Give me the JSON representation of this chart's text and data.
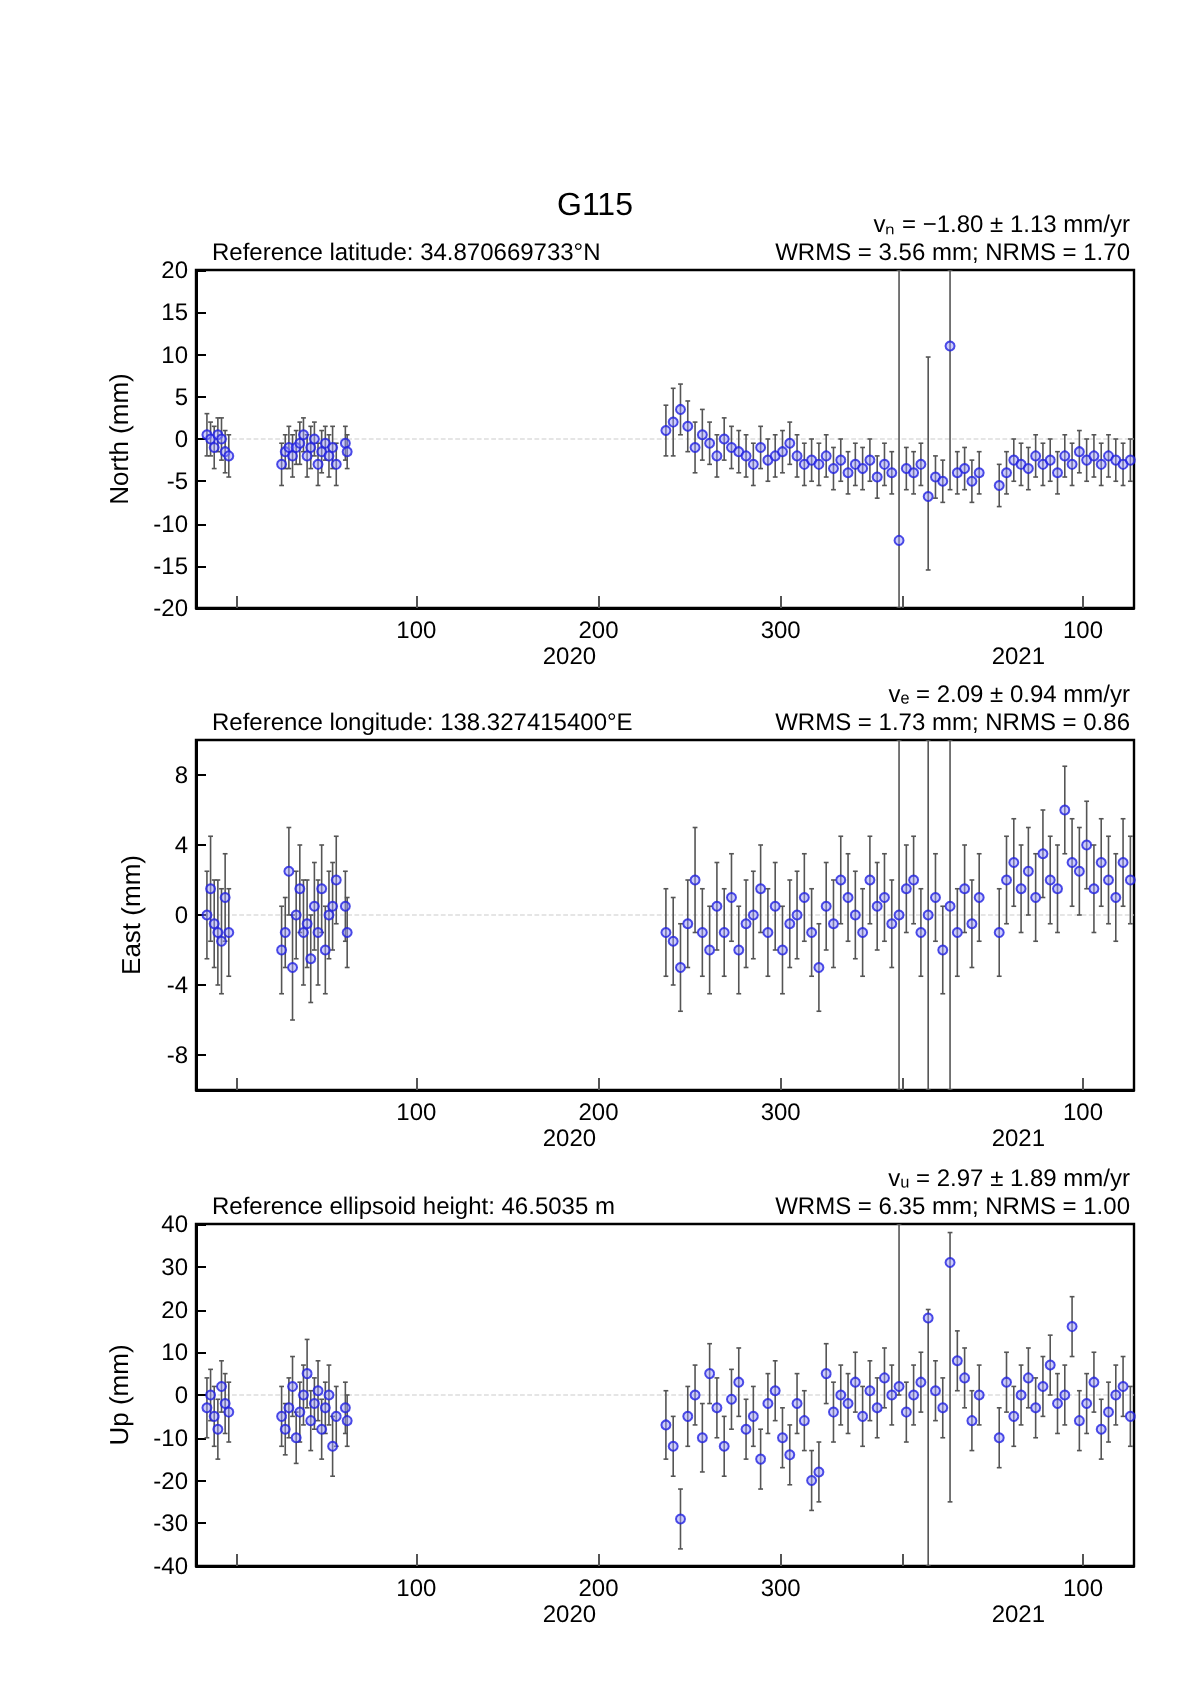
{
  "chart_data": [
    {
      "type": "scatter",
      "title": "G115",
      "subtitle": "Reference latitude: 34.870669733°N",
      "ylabel": "North (mm)",
      "annotations": [
        "vₙ = −1.80 ± 1.13 mm/yr",
        "WRMS = 3.56 mm; NRMS = 1.70",
        "2020",
        "2021"
      ],
      "color": "#2020e0",
      "marker": "circle",
      "xlim": [
        "2019-12-10",
        "2021-05-08"
      ],
      "xticks": [
        {
          "value": "2020-01-01",
          "label": null
        },
        {
          "value": "2020-04-09",
          "label": "100"
        },
        {
          "value": "2020-07-18",
          "label": "200"
        },
        {
          "value": "2020-10-26",
          "label": "300"
        },
        {
          "value": "2021-01-01",
          "label": null
        },
        {
          "value": "2021-04-10",
          "label": "100"
        }
      ],
      "ylim": [
        -20,
        20
      ],
      "yticks": [
        -20,
        -15,
        -10,
        -5,
        0,
        5,
        10,
        15,
        20
      ],
      "ref_lines": [
        {
          "axis": "y",
          "value": 0,
          "color": "#cccccc",
          "line_style": "dashed"
        }
      ],
      "x": [
        "2019-12-16",
        "2019-12-18",
        "2019-12-20",
        "2019-12-22",
        "2019-12-24",
        "2019-12-26",
        "2019-12-28",
        "2020-01-26",
        "2020-01-28",
        "2020-01-30",
        "2020-02-01",
        "2020-02-03",
        "2020-02-05",
        "2020-02-07",
        "2020-02-09",
        "2020-02-11",
        "2020-02-13",
        "2020-02-15",
        "2020-02-17",
        "2020-02-19",
        "2020-02-21",
        "2020-02-23",
        "2020-02-25",
        "2020-03-01",
        "2020-03-02",
        "2020-08-24",
        "2020-08-28",
        "2020-09-01",
        "2020-09-05",
        "2020-09-09",
        "2020-09-13",
        "2020-09-17",
        "2020-09-21",
        "2020-09-25",
        "2020-09-29",
        "2020-10-03",
        "2020-10-07",
        "2020-10-11",
        "2020-10-15",
        "2020-10-19",
        "2020-10-23",
        "2020-10-27",
        "2020-10-31",
        "2020-11-04",
        "2020-11-08",
        "2020-11-12",
        "2020-11-16",
        "2020-11-20",
        "2020-11-24",
        "2020-11-28",
        "2020-12-02",
        "2020-12-06",
        "2020-12-10",
        "2020-12-14",
        "2020-12-18",
        "2020-12-22",
        "2020-12-26",
        "2020-12-30",
        "2021-01-03",
        "2021-01-07",
        "2021-01-11",
        "2021-01-15",
        "2021-01-19",
        "2021-01-23",
        "2021-01-27",
        "2021-01-31",
        "2021-02-04",
        "2021-02-08",
        "2021-02-12",
        "2021-02-23",
        "2021-02-27",
        "2021-03-03",
        "2021-03-07",
        "2021-03-11",
        "2021-03-15",
        "2021-03-19",
        "2021-03-23",
        "2021-03-27",
        "2021-03-31",
        "2021-04-04",
        "2021-04-08",
        "2021-04-12",
        "2021-04-16",
        "2021-04-20",
        "2021-04-24",
        "2021-04-28",
        "2021-05-02",
        "2021-05-06"
      ],
      "values": [
        0.5,
        0,
        -1,
        0.5,
        0,
        -1.5,
        -2,
        -3,
        -1.5,
        -1,
        -2,
        -1,
        -0.5,
        0.5,
        -2,
        -1,
        0,
        -3,
        -1.5,
        -0.5,
        -2,
        -1,
        -3,
        -0.5,
        -1.5,
        1,
        2,
        3.5,
        1.5,
        -1,
        0.5,
        -0.5,
        -2,
        0,
        -1,
        -1.5,
        -2,
        -3,
        -1,
        -2.5,
        -2,
        -1.5,
        -0.5,
        -2,
        -3,
        -2.5,
        -3,
        -2,
        -3.5,
        -2.5,
        -4,
        -3,
        -3.5,
        -2.5,
        -4.5,
        -3,
        -4,
        -12,
        -3.5,
        -4,
        -3,
        -6.8,
        -4.5,
        -5,
        11,
        -4,
        -3.5,
        -5,
        -4,
        -5.5,
        -4,
        -2.5,
        -3,
        -3.5,
        -2,
        -3,
        -2.5,
        -4,
        -2,
        -3,
        -1.5,
        -2.5,
        -2,
        -3,
        -2,
        -2.5,
        -3,
        -2.5
      ],
      "errors": [
        2.5,
        2,
        2.5,
        2,
        2.5,
        2.5,
        2.5,
        2.5,
        2,
        2.5,
        2.5,
        2,
        2.5,
        2,
        2.5,
        2.5,
        2,
        2.5,
        2.5,
        2,
        2.5,
        2.5,
        2.5,
        2,
        2,
        3,
        4,
        3,
        3,
        3,
        3,
        2.5,
        2.5,
        2.5,
        2.5,
        2.5,
        2.5,
        2.5,
        2.5,
        2.5,
        2.5,
        2.5,
        2.5,
        2.5,
        2.5,
        2.5,
        2.5,
        2.5,
        2.5,
        2.5,
        2.5,
        2.5,
        2.5,
        2.5,
        2.5,
        2.5,
        2.5,
        [
          -20,
          20
        ],
        2.5,
        2.5,
        2.5,
        [
          -15.5,
          9.7
        ],
        2.5,
        2.5,
        [
          -6,
          20
        ],
        2.5,
        2.5,
        2.5,
        2.5,
        2.5,
        2.5,
        2.5,
        2.5,
        2.5,
        2.5,
        2.5,
        2.5,
        2.5,
        2.5,
        2.5,
        2.5,
        2.5,
        2.5,
        2.5,
        2.5,
        2.5,
        2.5,
        2.5
      ]
    },
    {
      "type": "scatter",
      "subtitle": "Reference longitude: 138.327415400°E",
      "ylabel": "East (mm)",
      "annotations": [
        "vₑ = 2.09 ± 0.94 mm/yr",
        "WRMS = 1.73 mm; NRMS = 0.86",
        "2020",
        "2021"
      ],
      "color": "#2020e0",
      "marker": "circle",
      "xlim": [
        "2019-12-10",
        "2021-05-08"
      ],
      "xticks": [
        {
          "value": "2020-01-01",
          "label": null
        },
        {
          "value": "2020-04-09",
          "label": "100"
        },
        {
          "value": "2020-07-18",
          "label": "200"
        },
        {
          "value": "2020-10-26",
          "label": "300"
        },
        {
          "value": "2021-01-01",
          "label": null
        },
        {
          "value": "2021-04-10",
          "label": "100"
        }
      ],
      "ylim": [
        -10,
        10
      ],
      "yticks": [
        -8,
        -4,
        0,
        4,
        8
      ],
      "ref_lines": [
        {
          "axis": "y",
          "value": 0,
          "color": "#cccccc",
          "line_style": "dashed"
        }
      ],
      "x": [
        "2019-12-16",
        "2019-12-18",
        "2019-12-20",
        "2019-12-22",
        "2019-12-24",
        "2019-12-26",
        "2019-12-28",
        "2020-01-26",
        "2020-01-28",
        "2020-01-30",
        "2020-02-01",
        "2020-02-03",
        "2020-02-05",
        "2020-02-07",
        "2020-02-09",
        "2020-02-11",
        "2020-02-13",
        "2020-02-15",
        "2020-02-17",
        "2020-02-19",
        "2020-02-21",
        "2020-02-23",
        "2020-02-25",
        "2020-03-01",
        "2020-03-02",
        "2020-08-24",
        "2020-08-28",
        "2020-09-01",
        "2020-09-05",
        "2020-09-09",
        "2020-09-13",
        "2020-09-17",
        "2020-09-21",
        "2020-09-25",
        "2020-09-29",
        "2020-10-03",
        "2020-10-07",
        "2020-10-11",
        "2020-10-15",
        "2020-10-19",
        "2020-10-23",
        "2020-10-27",
        "2020-10-31",
        "2020-11-04",
        "2020-11-08",
        "2020-11-12",
        "2020-11-16",
        "2020-11-20",
        "2020-11-24",
        "2020-11-28",
        "2020-12-02",
        "2020-12-06",
        "2020-12-10",
        "2020-12-14",
        "2020-12-18",
        "2020-12-22",
        "2020-12-26",
        "2020-12-30",
        "2021-01-03",
        "2021-01-07",
        "2021-01-11",
        "2021-01-15",
        "2021-01-19",
        "2021-01-23",
        "2021-01-27",
        "2021-01-31",
        "2021-02-04",
        "2021-02-08",
        "2021-02-12",
        "2021-02-23",
        "2021-02-27",
        "2021-03-03",
        "2021-03-07",
        "2021-03-11",
        "2021-03-15",
        "2021-03-19",
        "2021-03-23",
        "2021-03-27",
        "2021-03-31",
        "2021-04-04",
        "2021-04-08",
        "2021-04-12",
        "2021-04-16",
        "2021-04-20",
        "2021-04-24",
        "2021-04-28",
        "2021-05-02",
        "2021-05-06"
      ],
      "values": [
        0,
        1.5,
        -0.5,
        -1,
        -1.5,
        1,
        -1,
        -2,
        -1,
        2.5,
        -3,
        0,
        1.5,
        -1,
        -0.5,
        -2.5,
        0.5,
        -1,
        1.5,
        -2,
        0,
        0.5,
        2,
        0.5,
        -1,
        -1,
        -1.5,
        -3,
        -0.5,
        2,
        -1,
        -2,
        0.5,
        -1,
        1,
        -2,
        -0.5,
        0,
        1.5,
        -1,
        0.5,
        -2,
        -0.5,
        0,
        1,
        -1,
        -3,
        0.5,
        -0.5,
        2,
        1,
        0,
        -1,
        2,
        0.5,
        1,
        -0.5,
        0,
        1.5,
        2,
        -1,
        0,
        1,
        -2,
        0.5,
        -1,
        1.5,
        -0.5,
        1,
        -1,
        2,
        3,
        1.5,
        2.5,
        1,
        3.5,
        2,
        1.5,
        6,
        3,
        2.5,
        4,
        1.5,
        3,
        2,
        1,
        3,
        2
      ],
      "errors": [
        2.5,
        3,
        2.5,
        3,
        3,
        2.5,
        2.5,
        2.5,
        2,
        2.5,
        3,
        2.5,
        2.5,
        3,
        2.5,
        2.5,
        2.5,
        3,
        2.5,
        2.5,
        2.5,
        2.5,
        2.5,
        2,
        2,
        2.5,
        2.5,
        2.5,
        2.5,
        3,
        2.5,
        2.5,
        2.5,
        2.5,
        2.5,
        2.5,
        2.5,
        2.5,
        2.5,
        2.5,
        2.5,
        2.5,
        2.5,
        2.5,
        2.5,
        2.5,
        2.5,
        2.5,
        2.5,
        2.5,
        2.5,
        2.5,
        2.5,
        2.5,
        2.5,
        2.5,
        2.5,
        [
          -10,
          10
        ],
        2.5,
        2.5,
        2.5,
        [
          -10,
          10
        ],
        2.5,
        2.5,
        [
          -10,
          10
        ],
        2.5,
        2.5,
        2.5,
        2.5,
        2.5,
        2.5,
        2.5,
        2.5,
        2.5,
        2.5,
        2.5,
        2.5,
        2.5,
        2.5,
        2.5,
        2.5,
        2.5,
        2.5,
        2.5,
        2.5,
        2.5,
        2.5,
        2.5
      ]
    },
    {
      "type": "scatter",
      "subtitle": "Reference ellipsoid height: 46.5035 m",
      "ylabel": "Up (mm)",
      "annotations": [
        "vᵤ = 2.97 ± 1.89 mm/yr",
        "WRMS = 6.35 mm; NRMS = 1.00",
        "2020",
        "2021"
      ],
      "color": "#2020e0",
      "marker": "circle",
      "xlim": [
        "2019-12-10",
        "2021-05-08"
      ],
      "xticks": [
        {
          "value": "2020-01-01",
          "label": null
        },
        {
          "value": "2020-04-09",
          "label": "100"
        },
        {
          "value": "2020-07-18",
          "label": "200"
        },
        {
          "value": "2020-10-26",
          "label": "300"
        },
        {
          "value": "2021-01-01",
          "label": null
        },
        {
          "value": "2021-04-10",
          "label": "100"
        }
      ],
      "ylim": [
        -40,
        40
      ],
      "yticks": [
        -40,
        -30,
        -20,
        -10,
        0,
        10,
        20,
        30,
        40
      ],
      "ref_lines": [
        {
          "axis": "y",
          "value": 0,
          "color": "#cccccc",
          "line_style": "dashed"
        }
      ],
      "x": [
        "2019-12-16",
        "2019-12-18",
        "2019-12-20",
        "2019-12-22",
        "2019-12-24",
        "2019-12-26",
        "2019-12-28",
        "2020-01-26",
        "2020-01-28",
        "2020-01-30",
        "2020-02-01",
        "2020-02-03",
        "2020-02-05",
        "2020-02-07",
        "2020-02-09",
        "2020-02-11",
        "2020-02-13",
        "2020-02-15",
        "2020-02-17",
        "2020-02-19",
        "2020-02-21",
        "2020-02-23",
        "2020-02-25",
        "2020-03-01",
        "2020-03-02",
        "2020-08-24",
        "2020-08-28",
        "2020-09-01",
        "2020-09-05",
        "2020-09-09",
        "2020-09-13",
        "2020-09-17",
        "2020-09-21",
        "2020-09-25",
        "2020-09-29",
        "2020-10-03",
        "2020-10-07",
        "2020-10-11",
        "2020-10-15",
        "2020-10-19",
        "2020-10-23",
        "2020-10-27",
        "2020-10-31",
        "2020-11-04",
        "2020-11-08",
        "2020-11-12",
        "2020-11-16",
        "2020-11-20",
        "2020-11-24",
        "2020-11-28",
        "2020-12-02",
        "2020-12-06",
        "2020-12-10",
        "2020-12-14",
        "2020-12-18",
        "2020-12-22",
        "2020-12-26",
        "2020-12-30",
        "2021-01-03",
        "2021-01-07",
        "2021-01-11",
        "2021-01-15",
        "2021-01-19",
        "2021-01-23",
        "2021-01-27",
        "2021-01-31",
        "2021-02-04",
        "2021-02-08",
        "2021-02-12",
        "2021-02-23",
        "2021-02-27",
        "2021-03-03",
        "2021-03-07",
        "2021-03-11",
        "2021-03-15",
        "2021-03-19",
        "2021-03-23",
        "2021-03-27",
        "2021-03-31",
        "2021-04-04",
        "2021-04-08",
        "2021-04-12",
        "2021-04-16",
        "2021-04-20",
        "2021-04-24",
        "2021-04-28",
        "2021-05-02",
        "2021-05-06"
      ],
      "values": [
        -3,
        0,
        -5,
        -8,
        2,
        -2,
        -4,
        -5,
        -8,
        -3,
        2,
        -10,
        -4,
        0,
        5,
        -6,
        -2,
        1,
        -8,
        -3,
        0,
        -12,
        -5,
        -3,
        -6,
        -7,
        -12,
        -29,
        -5,
        0,
        -10,
        5,
        -3,
        -12,
        -1,
        3,
        -8,
        -5,
        -15,
        -2,
        1,
        -10,
        -14,
        -2,
        -6,
        -20,
        -18,
        5,
        -4,
        0,
        -2,
        3,
        -5,
        1,
        -3,
        4,
        0,
        2,
        -4,
        0,
        3,
        18,
        1,
        -3,
        31,
        8,
        4,
        -6,
        0,
        -10,
        3,
        -5,
        0,
        4,
        -3,
        2,
        7,
        -2,
        0,
        16,
        -6,
        -2,
        3,
        -8,
        -4,
        0,
        2,
        -5
      ],
      "errors": [
        7,
        6,
        7,
        7,
        6,
        7,
        7,
        7,
        6,
        7,
        7,
        6,
        7,
        7,
        8,
        7,
        6,
        7,
        7,
        6,
        7,
        7,
        7,
        6,
        6,
        8,
        7,
        7,
        7,
        7,
        8,
        7,
        7,
        7,
        7,
        8,
        7,
        7,
        7,
        7,
        7,
        7,
        7,
        7,
        7,
        7,
        7,
        7,
        7,
        7,
        7,
        7,
        7,
        7,
        7,
        7,
        7,
        [
          0,
          40
        ],
        7,
        7,
        7,
        [
          -40,
          20
        ],
        7,
        7,
        [
          -25,
          38
        ],
        7,
        7,
        7,
        7,
        7,
        7,
        7,
        7,
        7,
        7,
        7,
        7,
        7,
        7,
        7,
        7,
        7,
        7,
        7,
        7,
        7,
        7,
        7
      ]
    }
  ]
}
